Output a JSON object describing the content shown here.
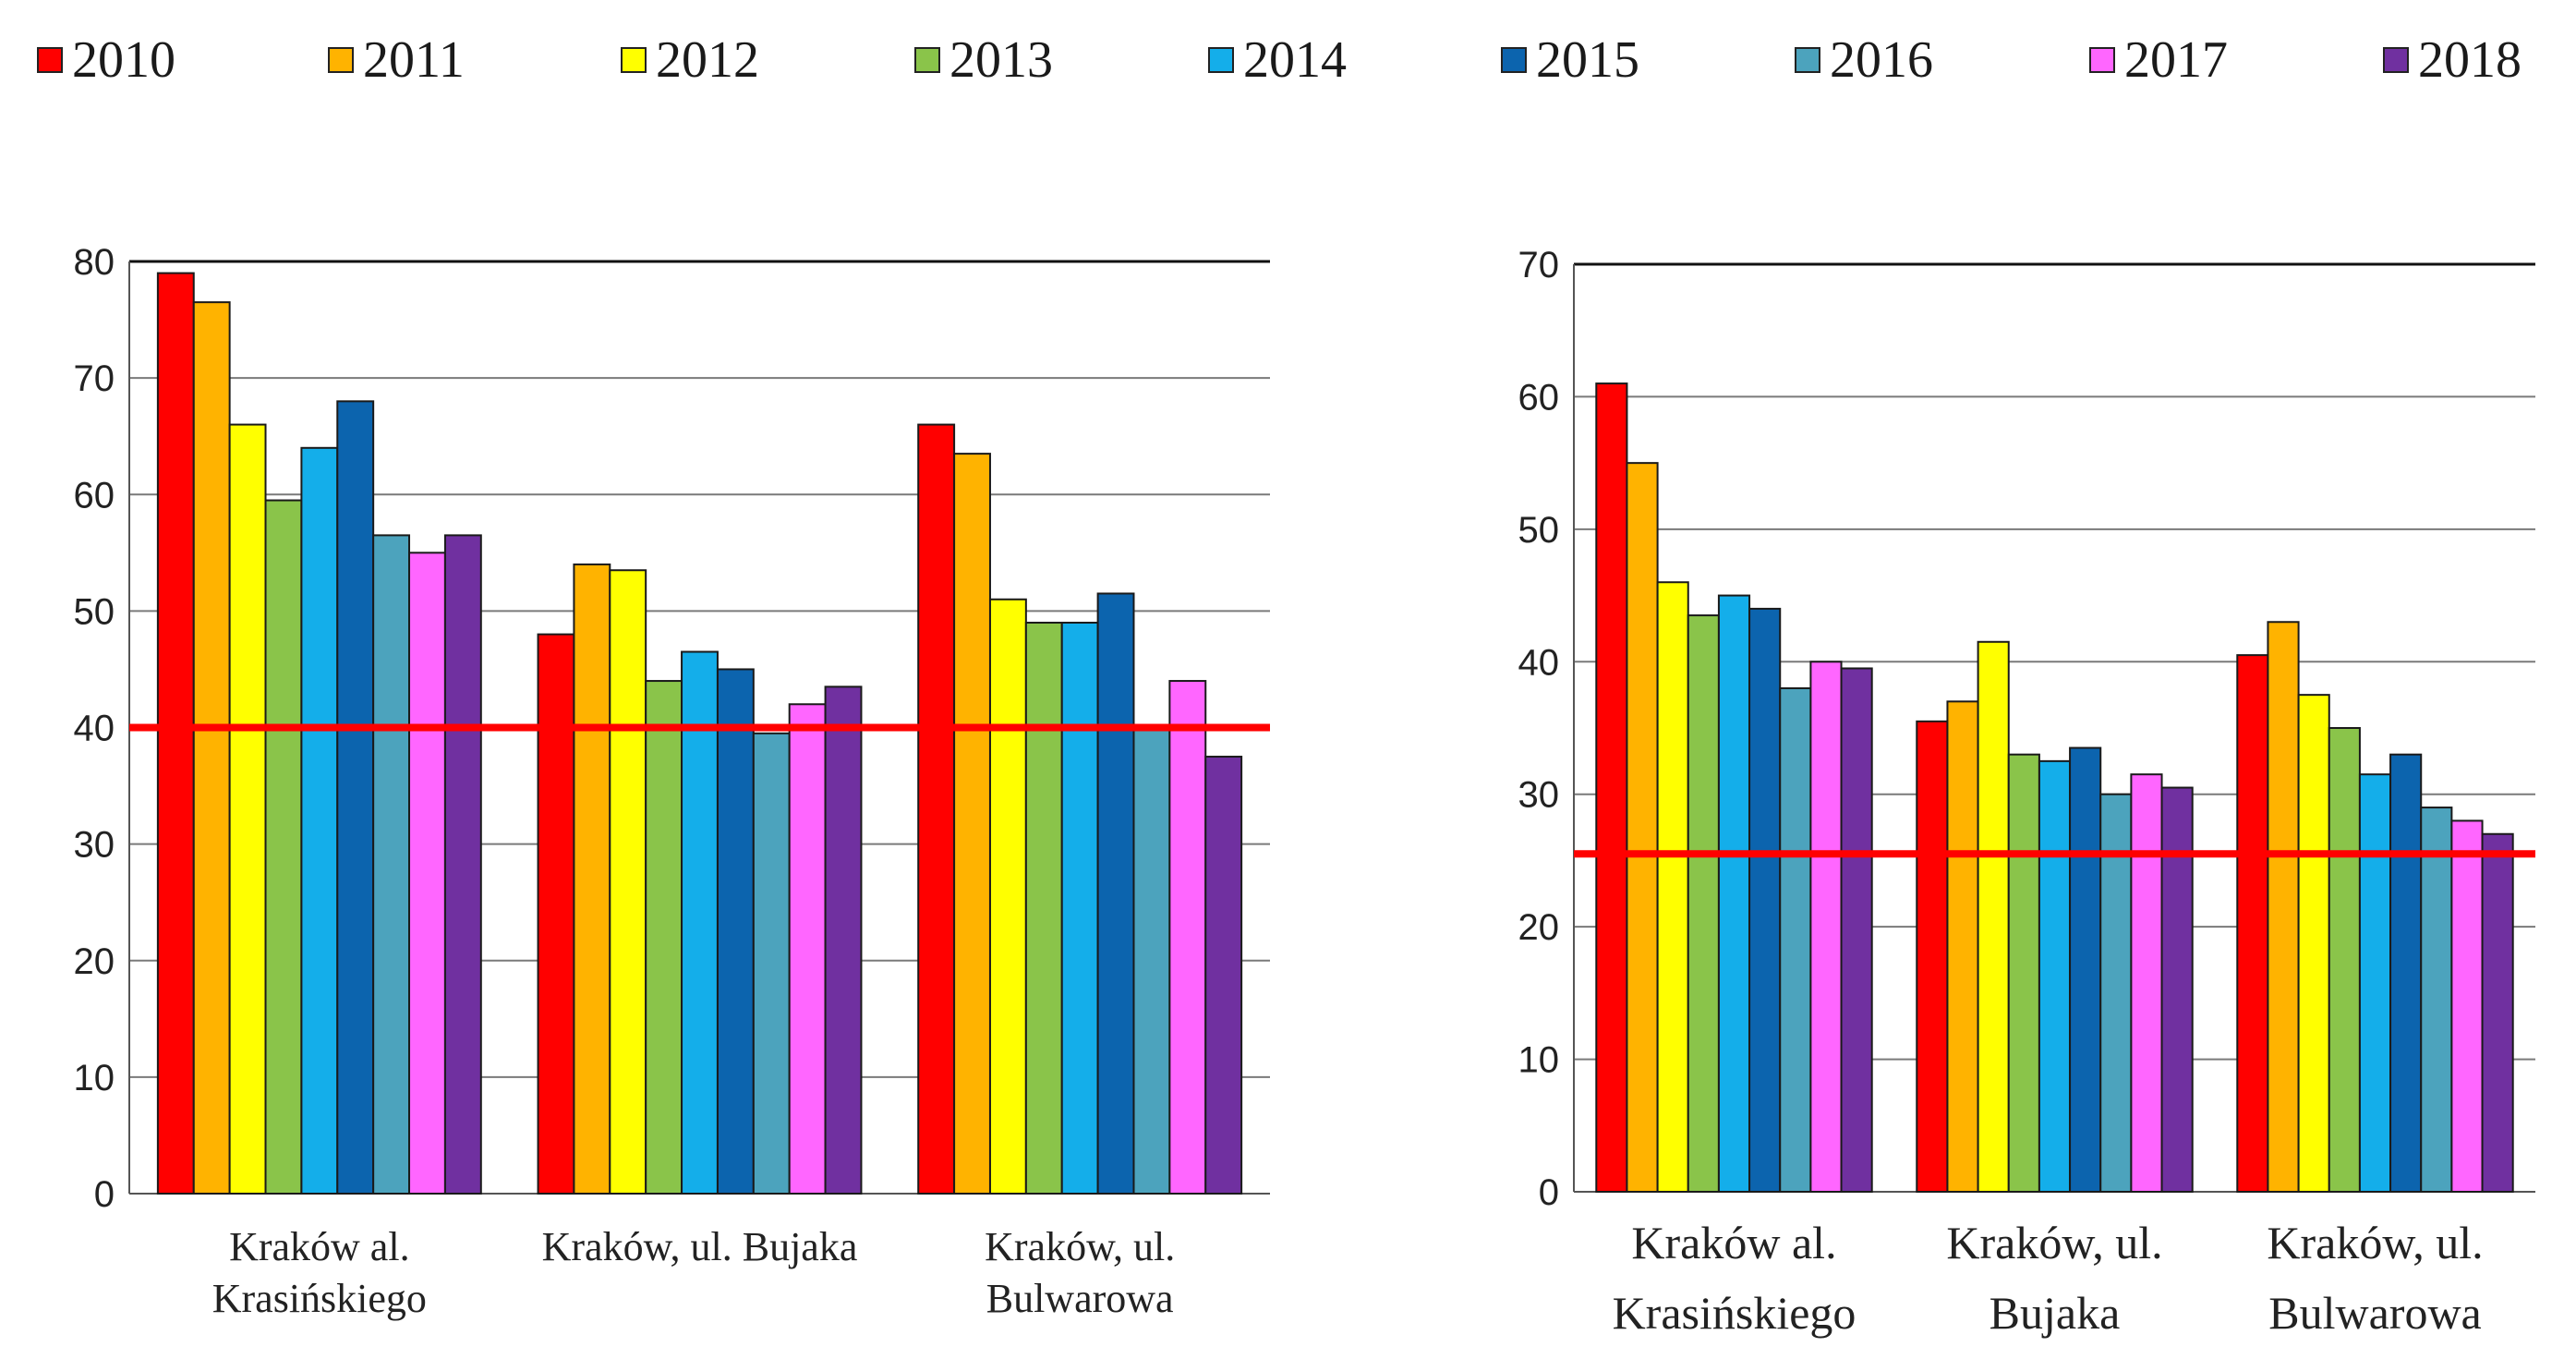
{
  "legend": {
    "items": [
      {
        "label": "2010",
        "color": "#ff0000"
      },
      {
        "label": "2011",
        "color": "#ffb300"
      },
      {
        "label": "2012",
        "color": "#ffff00"
      },
      {
        "label": "2013",
        "color": "#8ac44a"
      },
      {
        "label": "2014",
        "color": "#14aeea"
      },
      {
        "label": "2015",
        "color": "#0c64ae"
      },
      {
        "label": "2016",
        "color": "#4ca3bd"
      },
      {
        "label": "2017",
        "color": "#ff66ff"
      },
      {
        "label": "2018",
        "color": "#7030a0"
      }
    ]
  },
  "chart_data": [
    {
      "type": "bar",
      "categories": [
        [
          "Kraków al.",
          "Krasińskiego"
        ],
        [
          "Kraków, ul. Bujaka"
        ],
        [
          "Kraków, ul.",
          "Bulwarowa"
        ]
      ],
      "series": [
        {
          "name": "2010",
          "values": [
            79,
            48,
            66
          ]
        },
        {
          "name": "2011",
          "values": [
            76.5,
            54,
            63.5
          ]
        },
        {
          "name": "2012",
          "values": [
            66,
            53.5,
            51
          ]
        },
        {
          "name": "2013",
          "values": [
            59.5,
            44,
            49
          ]
        },
        {
          "name": "2014",
          "values": [
            64,
            46.5,
            49
          ]
        },
        {
          "name": "2015",
          "values": [
            68,
            45,
            51.5
          ]
        },
        {
          "name": "2016",
          "values": [
            56.5,
            39.5,
            40
          ]
        },
        {
          "name": "2017",
          "values": [
            55,
            42,
            44
          ]
        },
        {
          "name": "2018",
          "values": [
            56.5,
            43.5,
            37.5
          ]
        }
      ],
      "ylim": [
        0,
        80
      ],
      "yticks": [
        0,
        10,
        20,
        30,
        40,
        50,
        60,
        70,
        80
      ],
      "reference_line": {
        "value": 40,
        "color": "#ff0000"
      },
      "grid": true,
      "legend": "top"
    },
    {
      "type": "bar",
      "categories": [
        [
          "Kraków al.",
          "Krasińskiego"
        ],
        [
          "Kraków, ul.",
          "Bujaka"
        ],
        [
          "Kraków, ul.",
          "Bulwarowa"
        ]
      ],
      "series": [
        {
          "name": "2010",
          "values": [
            61,
            35.5,
            40.5
          ]
        },
        {
          "name": "2011",
          "values": [
            55,
            37,
            43
          ]
        },
        {
          "name": "2012",
          "values": [
            46,
            41.5,
            37.5
          ]
        },
        {
          "name": "2013",
          "values": [
            43.5,
            33,
            35
          ]
        },
        {
          "name": "2014",
          "values": [
            45,
            32.5,
            31.5
          ]
        },
        {
          "name": "2015",
          "values": [
            44,
            33.5,
            33
          ]
        },
        {
          "name": "2016",
          "values": [
            38,
            30,
            29
          ]
        },
        {
          "name": "2017",
          "values": [
            40,
            31.5,
            28
          ]
        },
        {
          "name": "2018",
          "values": [
            39.5,
            30.5,
            27
          ]
        }
      ],
      "ylim": [
        0,
        70
      ],
      "yticks": [
        0,
        10,
        20,
        30,
        40,
        50,
        60,
        70
      ],
      "reference_line": {
        "value": 25.5,
        "color": "#ff0000"
      },
      "grid": true,
      "legend": "top"
    }
  ]
}
